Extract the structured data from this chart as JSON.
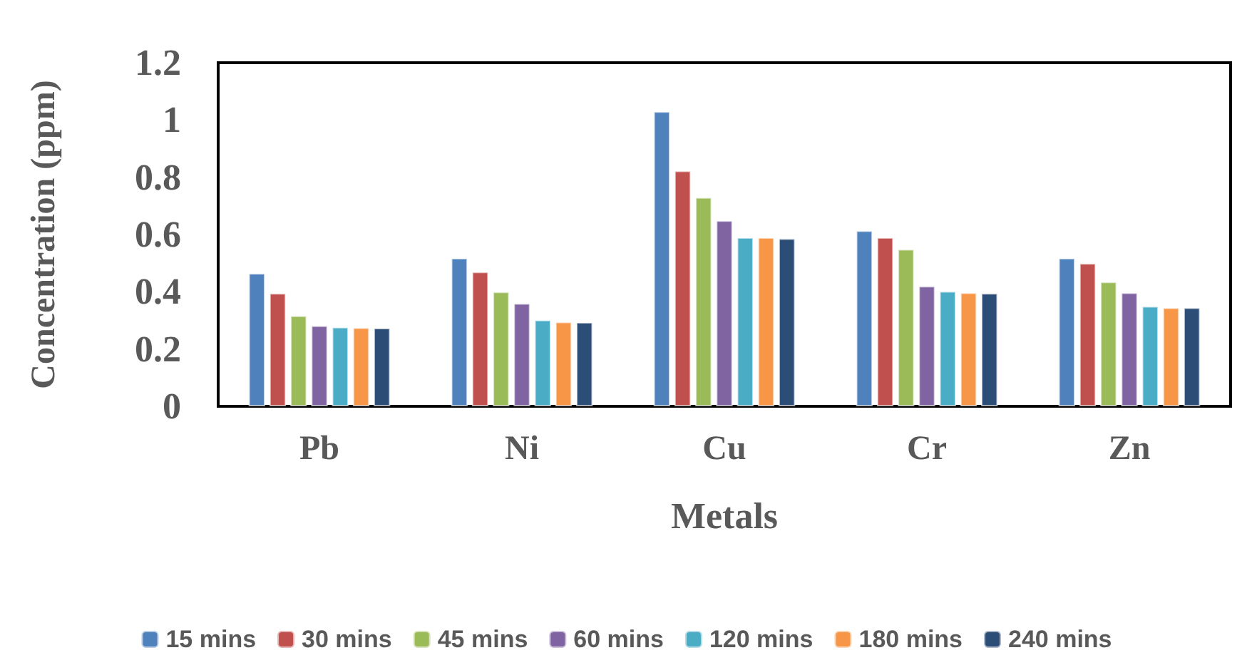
{
  "chart_data": {
    "type": "bar",
    "xlabel": "Metals",
    "ylabel": "Concentration (ppm)",
    "categories": [
      "Pb",
      "Ni",
      "Cu",
      "Cr",
      "Zn"
    ],
    "series": [
      {
        "name": "15 mins",
        "color": "#4f81bd",
        "values": [
          0.465,
          0.518,
          1.03,
          0.614,
          0.518
        ]
      },
      {
        "name": "30 mins",
        "color": "#c0504d",
        "values": [
          0.395,
          0.47,
          0.823,
          0.59,
          0.5
        ]
      },
      {
        "name": "45 mins",
        "color": "#9bbb59",
        "values": [
          0.317,
          0.4,
          0.73,
          0.549,
          0.435
        ]
      },
      {
        "name": "60 mins",
        "color": "#8064a2",
        "values": [
          0.282,
          0.36,
          0.649,
          0.42,
          0.397
        ]
      },
      {
        "name": "120 mins",
        "color": "#4bacc6",
        "values": [
          0.277,
          0.302,
          0.59,
          0.402,
          0.35
        ]
      },
      {
        "name": "180 mins",
        "color": "#f79646",
        "values": [
          0.275,
          0.295,
          0.59,
          0.397,
          0.345
        ]
      },
      {
        "name": "240 mins",
        "color": "#2c4d75",
        "values": [
          0.274,
          0.294,
          0.586,
          0.395,
          0.345
        ]
      }
    ],
    "ylim": [
      0,
      1.2
    ],
    "yticks": [
      0,
      0.2,
      0.4,
      0.6,
      0.8,
      1,
      1.2
    ],
    "grid": false,
    "legend": "bottom"
  }
}
